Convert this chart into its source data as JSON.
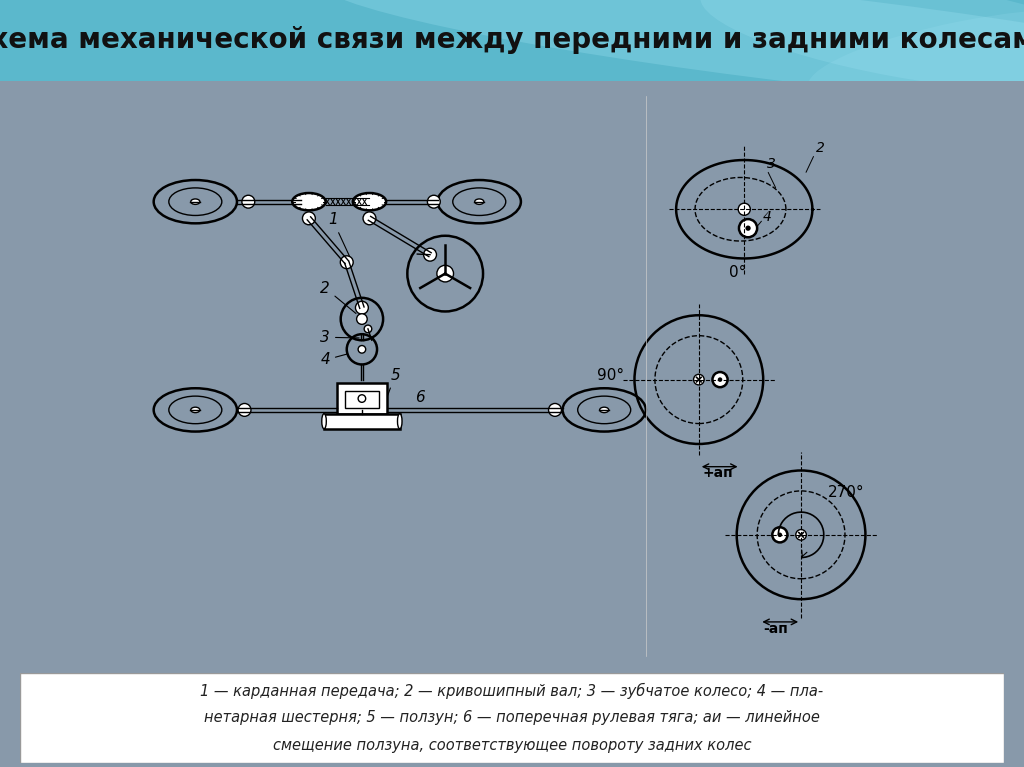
{
  "title": "Схема механической связи между передними и задними колесами",
  "title_fontsize": 20,
  "title_color": "#111111",
  "header_color": "#5ab8cc",
  "bg_outer_color": "#8899aa",
  "diagram_bg": "#ffffff",
  "caption_line1": "1 — карданная передача; 2 — кривошипный вал; 3 — зубчатое колесо; 4 — пла-",
  "caption_line2": "нетарная шестерня; 5 — ползун; 6 — поперечная рулевая тяга; aи — линейное",
  "caption_line3": "смещение ползуна, соответствующее повороту задних колес",
  "label_0deg": "0°",
  "label_90deg": "90°",
  "label_270deg": "270°",
  "label_ap_pos": "+aп",
  "label_ap_neg": "-aп"
}
